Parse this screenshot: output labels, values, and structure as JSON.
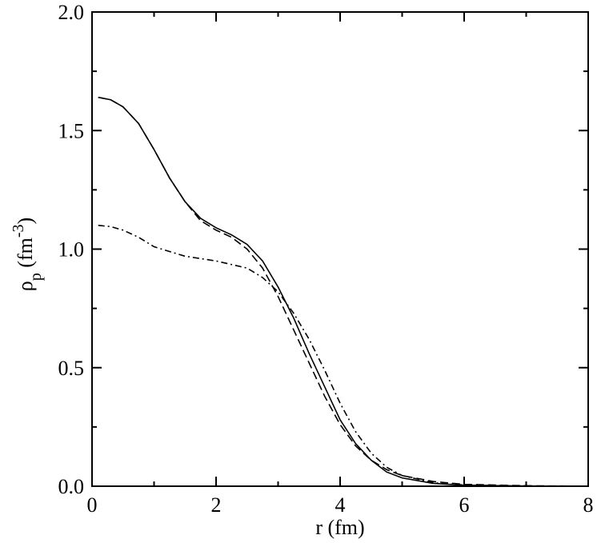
{
  "chart_data": {
    "type": "line",
    "xlabel": "r (fm)",
    "ylabel": [
      {
        "text": "ρ"
      },
      {
        "text": "p",
        "shift": "sub"
      },
      {
        "text": " (fm"
      },
      {
        "text": "-3",
        "shift": "super"
      },
      {
        "text": ")"
      }
    ],
    "x": [
      0.1,
      0.3,
      0.5,
      0.75,
      1,
      1.25,
      1.5,
      1.75,
      2,
      2.25,
      2.5,
      2.75,
      3,
      3.25,
      3.5,
      3.75,
      4,
      4.25,
      4.5,
      4.75,
      5,
      5.5,
      6,
      7,
      8
    ],
    "series": [
      {
        "color": "#000000",
        "dash": "solid",
        "values": [
          1.64,
          1.63,
          1.6,
          1.53,
          1.42,
          1.3,
          1.2,
          1.13,
          1.09,
          1.06,
          1.02,
          0.95,
          0.84,
          0.71,
          0.56,
          0.42,
          0.28,
          0.18,
          0.11,
          0.06,
          0.035,
          0.012,
          0.004,
          0.001,
          0
        ]
      },
      {
        "color": "#000000",
        "dash": "dashed",
        "values": [
          1.64,
          1.63,
          1.6,
          1.53,
          1.42,
          1.3,
          1.2,
          1.12,
          1.08,
          1.05,
          1.0,
          0.92,
          0.8,
          0.66,
          0.52,
          0.38,
          0.26,
          0.17,
          0.11,
          0.07,
          0.045,
          0.02,
          0.008,
          0.002,
          0
        ]
      },
      {
        "color": "#000000",
        "dash": "dashdot",
        "values": [
          1.1,
          1.095,
          1.08,
          1.05,
          1.01,
          0.99,
          0.97,
          0.96,
          0.95,
          0.935,
          0.92,
          0.88,
          0.82,
          0.73,
          0.62,
          0.49,
          0.35,
          0.23,
          0.14,
          0.08,
          0.045,
          0.015,
          0.005,
          0.001,
          0
        ]
      }
    ],
    "xlim": [
      0,
      8
    ],
    "xticks": [
      0,
      2,
      4,
      6,
      8
    ],
    "minor_xticks": [
      1,
      3,
      5,
      7
    ],
    "ylim": [
      0,
      2
    ],
    "yticks": [
      {
        "value": 0,
        "label": "0.0"
      },
      {
        "value": 0.5,
        "label": "0.5"
      },
      {
        "value": 1,
        "label": "1.0"
      },
      {
        "value": 1.5,
        "label": "1.5"
      },
      {
        "value": 2,
        "label": "2.0"
      }
    ],
    "minor_yticks": [
      0.25,
      0.75,
      1.25,
      1.75
    ],
    "grid": false
  }
}
